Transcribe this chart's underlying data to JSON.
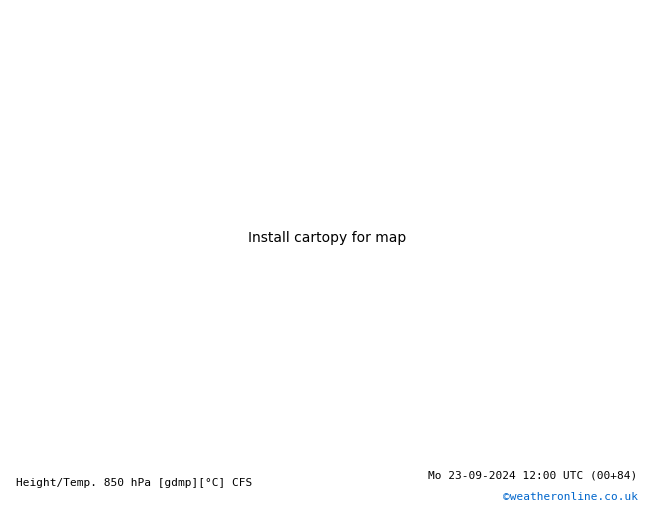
{
  "title_left": "Height/Temp. 850 hPa [gdmp][°C] CFS",
  "title_right": "Mo 23-09-2024 12:00 UTC (00+84)",
  "watermark": "©weatheronline.co.uk",
  "extent": [
    -55,
    45,
    25,
    75
  ],
  "bg_ocean": "#c8d8e8",
  "bg_land": "#d8d8d8",
  "green_fill": "#c8e8a0",
  "font_size_title": 8,
  "font_size_label": 8,
  "font_size_watermark": 8,
  "black_lw": 2.2,
  "colored_lw": 1.6
}
